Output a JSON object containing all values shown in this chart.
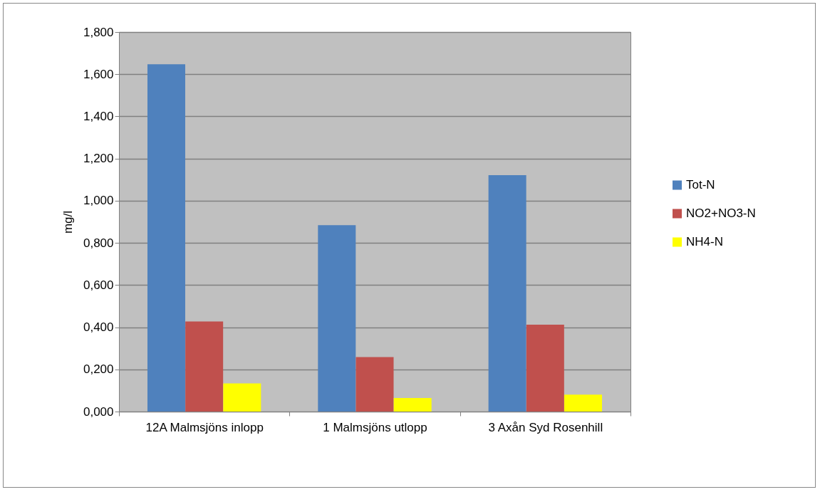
{
  "chart_data": {
    "type": "bar",
    "ylabel": "mg/l",
    "categories": [
      "12A Malmsjöns inlopp",
      "1 Malmsjöns utlopp",
      "3 Axån Syd Rosenhill"
    ],
    "series": [
      {
        "name": "Tot-N",
        "color": "#4f81bd",
        "values": [
          1.647,
          0.884,
          1.121
        ]
      },
      {
        "name": "NO2+NO3-N",
        "color": "#c0504d",
        "values": [
          0.427,
          0.258,
          0.412
        ]
      },
      {
        "name": "NH4-N",
        "color": "#ffff00",
        "values": [
          0.133,
          0.064,
          0.08
        ]
      }
    ],
    "ylim": [
      0,
      1.8
    ],
    "yticks": [
      {
        "value": 0,
        "label": "0,000"
      },
      {
        "value": 0.2,
        "label": "0,200"
      },
      {
        "value": 0.4,
        "label": "0,400"
      },
      {
        "value": 0.6,
        "label": "0,600"
      },
      {
        "value": 0.8,
        "label": "0,800"
      },
      {
        "value": 1.0,
        "label": "1,000"
      },
      {
        "value": 1.2,
        "label": "1,200"
      },
      {
        "value": 1.4,
        "label": "1,400"
      },
      {
        "value": 1.6,
        "label": "1,600"
      },
      {
        "value": 1.8,
        "label": "1,800"
      }
    ],
    "grid": "y",
    "legend": "right"
  }
}
